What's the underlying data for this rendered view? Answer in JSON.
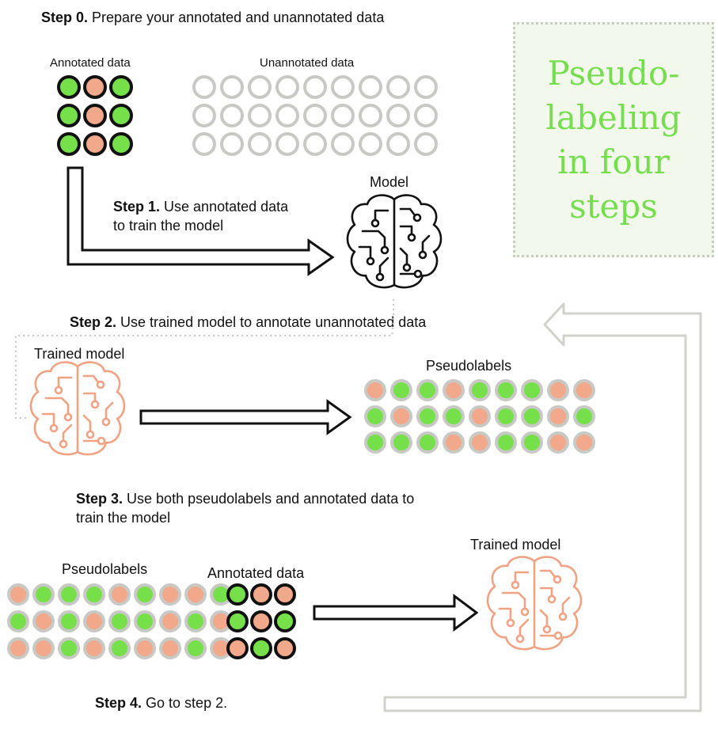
{
  "title": "Pseudo-\nlabeling\nin four\nsteps",
  "step0": {
    "bold": "Step 0.",
    "text": " Prepare your annotated and unannotated data"
  },
  "step1": {
    "bold": "Step 1.",
    "line1": " Use annotated data",
    "line2": "to train the model"
  },
  "step2": {
    "bold": "Step 2.",
    "text": " Use trained model to annotate unannotated data"
  },
  "step3": {
    "bold": "Step 3.",
    "line1": " Use both pseudolabels and annotated data to",
    "line2": "train the model"
  },
  "step4": {
    "bold": "Step 4.",
    "text": " Go to step 2."
  },
  "labels": {
    "annotated_data": "Annotated data",
    "unannotated_data": "Unannotated data",
    "model": "Model",
    "trained_model": "Trained model",
    "pseudolabels": "Pseudolabels"
  },
  "colors": {
    "green": "#76e04a",
    "salmon": "#f2a88a",
    "gray_ring": "#c8c8c4",
    "dark_ring": "#111111",
    "brain_orange": "#f0a283",
    "title_green": "#76dd4f"
  },
  "grids": {
    "annotated": [
      [
        "green",
        "salmon",
        "green"
      ],
      [
        "green",
        "salmon",
        "green"
      ],
      [
        "green",
        "salmon",
        "green"
      ]
    ],
    "unannotated_rows": 3,
    "unannotated_cols": 9,
    "pseudolabels": [
      [
        "salmon",
        "green",
        "green",
        "salmon",
        "green",
        "green",
        "green",
        "salmon",
        "salmon"
      ],
      [
        "green",
        "salmon",
        "green",
        "green",
        "salmon",
        "green",
        "green",
        "salmon",
        "green"
      ],
      [
        "green",
        "green",
        "green",
        "salmon",
        "salmon",
        "green",
        "green",
        "salmon",
        "salmon"
      ]
    ],
    "pseudolabels_step3": [
      [
        "salmon",
        "green",
        "green",
        "green",
        "salmon",
        "green",
        "salmon",
        "salmon",
        "green"
      ],
      [
        "green",
        "salmon",
        "green",
        "salmon",
        "green",
        "green",
        "salmon",
        "green",
        "salmon"
      ],
      [
        "salmon",
        "salmon",
        "green",
        "salmon",
        "green",
        "salmon",
        "salmon",
        "green",
        "salmon"
      ]
    ],
    "annotated_step3": [
      [
        "green",
        "salmon",
        "salmon"
      ],
      [
        "green",
        "salmon",
        "green"
      ],
      [
        "salmon",
        "green",
        "salmon"
      ]
    ]
  },
  "icons": [
    "brain-circuit-icon",
    "arrow-right-icon",
    "loop-arrow-icon"
  ]
}
